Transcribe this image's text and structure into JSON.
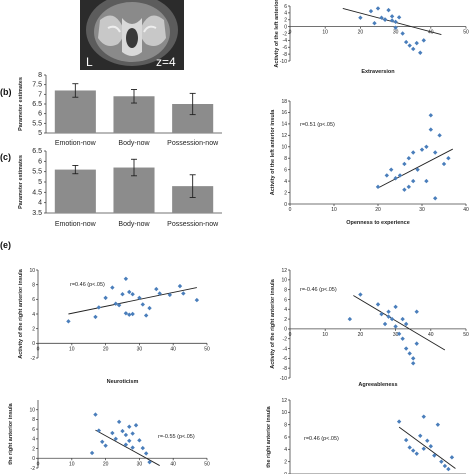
{
  "panel_labels": {
    "b": "(b)",
    "c": "(c)",
    "e": "(e)"
  },
  "brain": {
    "left_label": "L",
    "slice_label": "z=4"
  },
  "chart_data": [
    {
      "id": "bar_b",
      "type": "bar",
      "ylabel": "Parameter estimates",
      "categories": [
        "Emotion-now",
        "Body-now",
        "Possession-now"
      ],
      "values": [
        7.2,
        6.9,
        6.5
      ],
      "errors": [
        0.35,
        0.35,
        0.55
      ],
      "ylim": [
        5.0,
        8.0
      ],
      "yticks": [
        "5",
        "5.5",
        "6",
        "6.5",
        "7",
        "7.5",
        "8"
      ]
    },
    {
      "id": "bar_c",
      "type": "bar",
      "ylabel": "Parameter estimates",
      "categories": [
        "Emotion-now",
        "Body-now",
        "Possession-now"
      ],
      "values": [
        5.6,
        5.7,
        4.8
      ],
      "errors": [
        0.2,
        0.4,
        0.55
      ],
      "ylim": [
        3.5,
        6.5
      ],
      "yticks": [
        "3.5",
        "4",
        "4.5",
        "5",
        "5.5",
        "6",
        "6.5"
      ]
    },
    {
      "id": "sc_extra",
      "type": "scatter",
      "ylabel": "Activity of the left anterior",
      "xlabel": "Extraversion",
      "xlim": [
        0,
        50
      ],
      "ylim": [
        -10,
        6
      ],
      "xticks": [
        "0",
        "10",
        "20",
        "30",
        "40",
        "50"
      ],
      "yticks": [
        "6",
        "4",
        "2",
        "0",
        "-2",
        "-4",
        "-6",
        "-8",
        "-10"
      ],
      "annotation": "",
      "points": [
        [
          20,
          2.6
        ],
        [
          23,
          4.5
        ],
        [
          24,
          1.0
        ],
        [
          25,
          5.3
        ],
        [
          26,
          2.6
        ],
        [
          27,
          2.0
        ],
        [
          28,
          4.8
        ],
        [
          29,
          1.8
        ],
        [
          30,
          1.4
        ],
        [
          31,
          2.7
        ],
        [
          30,
          -0.3
        ],
        [
          32,
          -2.0
        ],
        [
          33,
          -4.5
        ],
        [
          34,
          -5.5
        ],
        [
          35,
          -6.5
        ],
        [
          36,
          -4.8
        ],
        [
          37,
          -7.6
        ],
        [
          38,
          -4.0
        ],
        [
          27,
          2.1
        ],
        [
          29,
          3.0
        ]
      ],
      "fit": [
        [
          15,
          5.3
        ],
        [
          43,
          -2.3
        ]
      ]
    },
    {
      "id": "sc_open",
      "type": "scatter",
      "ylabel": "Activity of the left anterior insula",
      "xlabel": "Openness to experience",
      "xlim": [
        0,
        40
      ],
      "ylim": [
        0,
        18
      ],
      "xticks": [
        "0",
        "10",
        "20",
        "30",
        "40"
      ],
      "yticks": [
        "0",
        "2",
        "4",
        "6",
        "8",
        "10",
        "12",
        "14",
        "16",
        "18"
      ],
      "annotation": "r=0.51  (p<.05)",
      "points": [
        [
          20,
          3.0
        ],
        [
          22,
          5.0
        ],
        [
          23,
          6.0
        ],
        [
          24,
          4.5
        ],
        [
          25,
          5.0
        ],
        [
          26,
          7.0
        ],
        [
          27,
          8.0
        ],
        [
          27,
          3.0
        ],
        [
          28,
          4.0
        ],
        [
          28,
          9.0
        ],
        [
          29,
          6.0
        ],
        [
          30,
          9.5
        ],
        [
          31,
          10.0
        ],
        [
          31,
          4.0
        ],
        [
          32,
          13.0
        ],
        [
          32,
          15.5
        ],
        [
          33,
          9.0
        ],
        [
          33,
          1.0
        ],
        [
          34,
          12.0
        ],
        [
          35,
          7.0
        ],
        [
          36,
          8.0
        ],
        [
          26,
          2.5
        ]
      ],
      "fit": [
        [
          20,
          2.8
        ],
        [
          37,
          9.6
        ]
      ]
    },
    {
      "id": "sc_neuro",
      "type": "scatter",
      "ylabel": "Activity of the right anterior insula",
      "xlabel": "Neuroticism",
      "xlim": [
        0,
        50
      ],
      "ylim": [
        -2,
        10
      ],
      "xticks": [
        "0",
        "10",
        "20",
        "30",
        "40",
        "50"
      ],
      "yticks": [
        "10",
        "8",
        "6",
        "4",
        "2",
        "0",
        "-2"
      ],
      "annotation": "r=0.46   (p<.05)",
      "points": [
        [
          9,
          3.0
        ],
        [
          17,
          3.6
        ],
        [
          18,
          4.9
        ],
        [
          20,
          6.2
        ],
        [
          22,
          7.6
        ],
        [
          23,
          5.4
        ],
        [
          24,
          5.2
        ],
        [
          25,
          6.7
        ],
        [
          26,
          8.8
        ],
        [
          26,
          4.1
        ],
        [
          27,
          3.9
        ],
        [
          27,
          7.0
        ],
        [
          28,
          6.7
        ],
        [
          30,
          6.2
        ],
        [
          31,
          5.3
        ],
        [
          32,
          3.8
        ],
        [
          33,
          4.8
        ],
        [
          35,
          7.4
        ],
        [
          36,
          6.8
        ],
        [
          39,
          6.6
        ],
        [
          42,
          7.8
        ],
        [
          43,
          6.8
        ],
        [
          47,
          5.9
        ],
        [
          28,
          4.0
        ]
      ],
      "fit": [
        [
          9,
          4.0
        ],
        [
          47,
          7.6
        ]
      ]
    },
    {
      "id": "sc_agree",
      "type": "scatter",
      "ylabel": "Activity of the right anterior insula",
      "xlabel": "Agreeableness",
      "xlim": [
        0,
        50
      ],
      "ylim": [
        -10,
        12
      ],
      "xticks": [
        "0",
        "10",
        "20",
        "30",
        "40",
        "50"
      ],
      "yticks": [
        "12",
        "10",
        "8",
        "6",
        "4",
        "2",
        "0",
        "-2",
        "-4",
        "-6",
        "-8",
        "-10"
      ],
      "annotation": "r=-0.46  (p<.05)",
      "points": [
        [
          17,
          2.0
        ],
        [
          20,
          7.0
        ],
        [
          25,
          5.0
        ],
        [
          26,
          3.0
        ],
        [
          27,
          1.0
        ],
        [
          28,
          2.5
        ],
        [
          28,
          3.5
        ],
        [
          29,
          2.0
        ],
        [
          30,
          0.5
        ],
        [
          30,
          4.5
        ],
        [
          31,
          -1.0
        ],
        [
          32,
          2.0
        ],
        [
          32,
          -2.0
        ],
        [
          33,
          -4.0
        ],
        [
          34,
          -5.0
        ],
        [
          35,
          -7.0
        ],
        [
          35,
          -6.0
        ],
        [
          36,
          3.5
        ],
        [
          36,
          -3.0
        ],
        [
          33,
          1.0
        ]
      ],
      "fit": [
        [
          18,
          6.8
        ],
        [
          44,
          -4.3
        ]
      ]
    },
    {
      "id": "sc_bottom_left",
      "type": "scatter",
      "ylabel": "the right anterior insula",
      "xlabel": "",
      "xlim": [
        0,
        50
      ],
      "ylim": [
        -2,
        12
      ],
      "xticks": [
        "0",
        "10",
        "20",
        "30",
        "40",
        "50"
      ],
      "yticks": [
        "10",
        "8",
        "6",
        "4",
        "2",
        "0",
        "-2"
      ],
      "annotation": "r=-0.55  (p<.05)",
      "points": [
        [
          17,
          9.0
        ],
        [
          18,
          5.7
        ],
        [
          19,
          3.4
        ],
        [
          20,
          2.6
        ],
        [
          22,
          5.2
        ],
        [
          23,
          4.0
        ],
        [
          24,
          7.5
        ],
        [
          25,
          5.6
        ],
        [
          26,
          4.8
        ],
        [
          26,
          2.8
        ],
        [
          27,
          6.5
        ],
        [
          28,
          5.1
        ],
        [
          28,
          2.2
        ],
        [
          29,
          6.8
        ],
        [
          30,
          3.7
        ],
        [
          31,
          2.1
        ],
        [
          32,
          1.0
        ],
        [
          33,
          -0.8
        ],
        [
          27,
          3.6
        ],
        [
          16,
          1.1
        ]
      ],
      "fit": [
        [
          17,
          5.8
        ],
        [
          36,
          -1.5
        ]
      ]
    },
    {
      "id": "sc_bottom_right",
      "type": "scatter",
      "ylabel": "the right anterior insula",
      "xlabel": "",
      "xlim": [
        0,
        50
      ],
      "ylim": [
        0,
        12
      ],
      "xticks": [],
      "yticks": [
        "12",
        "10",
        "8",
        "6",
        "4",
        "2",
        "0"
      ],
      "annotation": "r=0.46  (p<.05)",
      "points": [
        [
          31,
          8.5
        ],
        [
          33,
          5.5
        ],
        [
          34,
          4.3
        ],
        [
          35,
          3.8
        ],
        [
          36,
          3.3
        ],
        [
          37,
          6.2
        ],
        [
          38,
          4.1
        ],
        [
          39,
          5.4
        ],
        [
          40,
          4.5
        ],
        [
          41,
          3.0
        ],
        [
          42,
          8.0
        ],
        [
          43,
          2.0
        ],
        [
          44,
          1.3
        ],
        [
          45,
          0.8
        ],
        [
          46,
          2.7
        ],
        [
          38,
          9.3
        ]
      ],
      "fit": [
        [
          31,
          7.6
        ],
        [
          47,
          0.9
        ]
      ]
    }
  ]
}
